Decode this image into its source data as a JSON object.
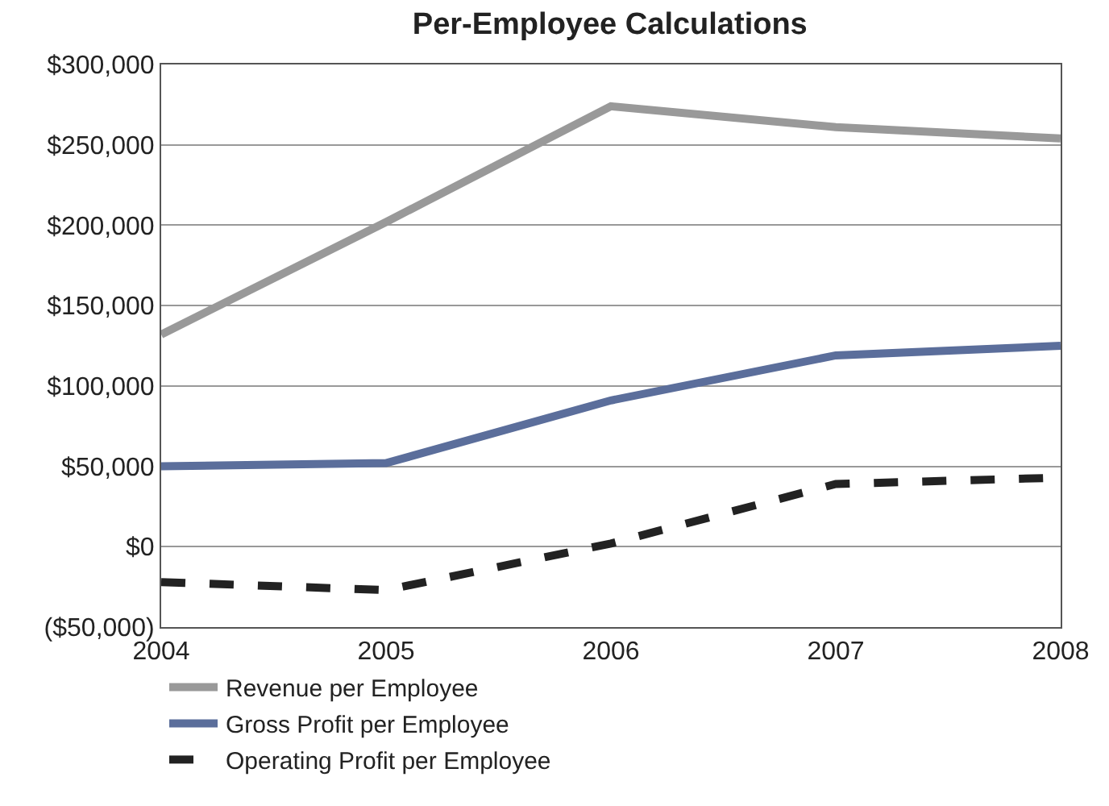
{
  "chart_data": {
    "type": "line",
    "title": "Per-Employee Calculations",
    "x": [
      2004,
      2005,
      2006,
      2007,
      2008
    ],
    "xlim": [
      2004,
      2008
    ],
    "xticks": [
      2004,
      2005,
      2006,
      2007,
      2008
    ],
    "ylim": [
      -50000,
      300000
    ],
    "yticks": [
      {
        "value": -50000,
        "label": "($50,000)"
      },
      {
        "value": 0,
        "label": "$0"
      },
      {
        "value": 50000,
        "label": "$50,000"
      },
      {
        "value": 100000,
        "label": "$100,000"
      },
      {
        "value": 150000,
        "label": "$150,000"
      },
      {
        "value": 200000,
        "label": "$200,000"
      },
      {
        "value": 250000,
        "label": "$250,000"
      },
      {
        "value": 300000,
        "label": "$300,000"
      }
    ],
    "grid": "y",
    "legend": "bottom",
    "marker": "none",
    "series": [
      {
        "name": "Revenue per Employee",
        "color": "#999999",
        "line_style": "solid",
        "values": [
          132000,
          202000,
          274000,
          261000,
          254000
        ]
      },
      {
        "name": "Gross Profit per Employee",
        "color": "#5b6e9b",
        "line_style": "solid",
        "values": [
          50000,
          52000,
          91000,
          119000,
          125000
        ]
      },
      {
        "name": "Operating Profit per Employee",
        "color": "#222222",
        "line_style": "dashed",
        "values": [
          -22000,
          -27000,
          2000,
          39000,
          43000
        ]
      }
    ]
  }
}
